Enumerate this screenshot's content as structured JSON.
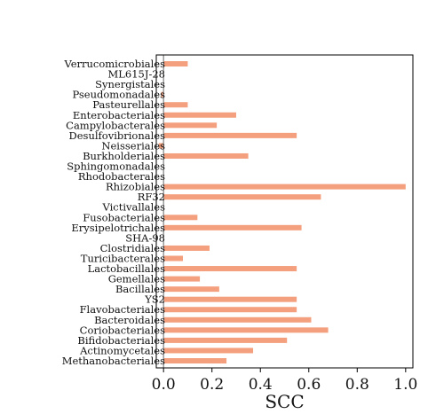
{
  "chart_data": {
    "type": "bar",
    "orientation": "horizontal",
    "xlabel": "SCC",
    "ylabel": "",
    "xlim": [
      -0.03,
      1.03
    ],
    "xticks": [
      "0.0",
      "0.2",
      "0.4",
      "0.6",
      "0.8",
      "1.0"
    ],
    "grid": false,
    "bar_color": "#F4A07E",
    "zero_line_color": "#808080",
    "categories": [
      "Verrucomicrobiales",
      "ML615J-28",
      "Synergistales",
      "Pseudomonadales",
      "Pasteurellales",
      "Enterobacteriales",
      "Campylobacterales",
      "Desulfovibrionales",
      "Neisseriales",
      "Burkholderiales",
      "Sphingomonadales",
      "Rhodobacterales",
      "Rhizobiales",
      "RF32",
      "Victivallales",
      "Fusobacteriales",
      "Erysipelotrichales",
      "SHA-98",
      "Clostridiales",
      "Turicibacterales",
      "Lactobacillales",
      "Gemellales",
      "Bacillales",
      "YS2",
      "Flavobacteriales",
      "Bacteroidales",
      "Coriobacteriales",
      "Bifidobacteriales",
      "Actinomycetales",
      "Methanobacteriales"
    ],
    "values": [
      0.1,
      0.0,
      0.0,
      -0.01,
      0.1,
      0.3,
      0.22,
      0.55,
      -0.02,
      0.35,
      0.0,
      0.0,
      1.0,
      0.65,
      0.0,
      0.14,
      0.57,
      0.0,
      0.19,
      0.08,
      0.55,
      0.15,
      0.23,
      0.55,
      0.55,
      0.61,
      0.68,
      0.51,
      0.37,
      0.26
    ]
  }
}
